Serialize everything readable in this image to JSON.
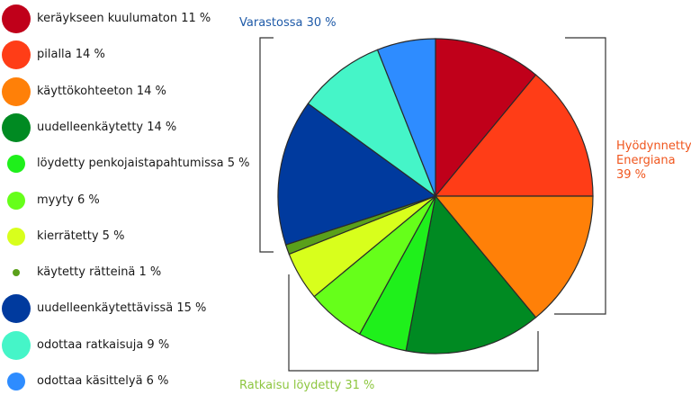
{
  "chart_data": {
    "type": "pie",
    "slices": [
      {
        "label": "keräykseen kuulumaton 11 %",
        "value": 11,
        "color": "#c0001a"
      },
      {
        "label": "pilalla 14 %",
        "value": 14,
        "color": "#ff3d17"
      },
      {
        "label": "käyttökohteeton 14 %",
        "value": 14,
        "color": "#ff8008"
      },
      {
        "label": "uudelleenkäytetty 14 %",
        "value": 14,
        "color": "#008a22"
      },
      {
        "label": "löydetty penkojaistapahtumissa 5 %",
        "value": 5,
        "color": "#1ff01b"
      },
      {
        "label": "myyty 6 %",
        "value": 6,
        "color": "#66ff1a"
      },
      {
        "label": "kierrätetty 5 %",
        "value": 5,
        "color": "#d8ff1c"
      },
      {
        "label": "käytetty rätteinä 1 %",
        "value": 1,
        "color": "#5aa01a"
      },
      {
        "label": "uudelleenkäytettävissä 15 %",
        "value": 15,
        "color": "#003a9e"
      },
      {
        "label": "odottaa ratkaisuja 9 %",
        "value": 9,
        "color": "#45f5c8"
      },
      {
        "label": "odottaa käsittelyä 6 %",
        "value": 6,
        "color": "#2e8cff"
      }
    ],
    "groups": [
      {
        "label": "Varastossa 30 %",
        "color": "#1e5aa8"
      },
      {
        "label": "Hyödynnetty\nEnergiana\n39 %",
        "color": "#f0561e"
      },
      {
        "label": "Ratkaisu löydetty 31 %",
        "color": "#8dc63f"
      }
    ]
  }
}
